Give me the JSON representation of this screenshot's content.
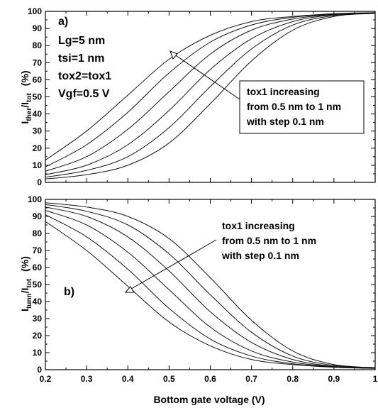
{
  "chart_data": [
    {
      "type": "line",
      "panel_label": "a)",
      "ylabel_main": "I",
      "ylabel_sub1": "ther",
      "ylabel_mid": "/I",
      "ylabel_sub2": "tot",
      "ylabel_unit": "(%)",
      "xlim": [
        0.2,
        1.0
      ],
      "ylim": [
        0,
        100
      ],
      "xticks": [
        "0.2",
        "0.3",
        "0.4",
        "0.5",
        "0.6",
        "0.7",
        "0.8",
        "0.9",
        "1"
      ],
      "yticks": [
        "0",
        "10",
        "20",
        "30",
        "40",
        "50",
        "60",
        "70",
        "80",
        "90",
        "100"
      ],
      "params": [
        "Lg=5 nm",
        "tsi=1 nm",
        "tox2=tox1",
        "Vgf=0.5 V"
      ],
      "annotation": [
        "tox1 increasing",
        "from 0.5 nm to 1 nm",
        "with step 0.1 nm"
      ],
      "x": [
        0.2,
        0.3,
        0.4,
        0.5,
        0.6,
        0.7,
        0.8,
        0.9,
        1.0
      ],
      "series": [
        {
          "values": [
            13,
            30,
            51,
            72,
            86,
            94,
            97,
            98.6,
            99.3
          ]
        },
        {
          "values": [
            9,
            22,
            41,
            64,
            82,
            92,
            96.5,
            98.4,
            99.2
          ]
        },
        {
          "values": [
            6.5,
            15,
            31,
            53,
            75,
            89,
            95.5,
            98.2,
            99.1
          ]
        },
        {
          "values": [
            4.5,
            10,
            22,
            42,
            66,
            84,
            94,
            98,
            99
          ]
        },
        {
          "values": [
            3,
            7,
            15,
            32,
            56,
            78,
            92,
            97.5,
            99
          ]
        },
        {
          "values": [
            2,
            4.5,
            10,
            23,
            46,
            71,
            89,
            97,
            98.8
          ]
        }
      ]
    },
    {
      "type": "line",
      "panel_label": "b)",
      "ylabel_main": "I",
      "ylabel_sub1": "tunn",
      "ylabel_mid": "/I",
      "ylabel_sub2": "tot",
      "ylabel_unit": "(%)",
      "xlabel": "Bottom gate voltage (V)",
      "xlim": [
        0.2,
        1.0
      ],
      "ylim": [
        0,
        100
      ],
      "xticks": [
        "0.2",
        "0.3",
        "0.4",
        "0.5",
        "0.6",
        "0.7",
        "0.8",
        "0.9",
        "1"
      ],
      "yticks": [
        "0",
        "10",
        "20",
        "30",
        "40",
        "50",
        "60",
        "70",
        "80",
        "90",
        "100"
      ],
      "annotation": [
        "tox1 increasing",
        "from 0.5 nm to 1 nm",
        "with step 0.1 nm"
      ],
      "x": [
        0.2,
        0.3,
        0.4,
        0.5,
        0.6,
        0.7,
        0.8,
        0.9,
        1.0
      ],
      "series": [
        {
          "values": [
            87,
            70,
            49,
            28,
            14,
            6,
            3,
            1.4,
            0.7
          ]
        },
        {
          "values": [
            91,
            78,
            59,
            36,
            18,
            8,
            3.5,
            1.6,
            0.8
          ]
        },
        {
          "values": [
            93.5,
            85,
            69,
            47,
            25,
            11,
            4.5,
            1.8,
            0.9
          ]
        },
        {
          "values": [
            95.5,
            90,
            78,
            58,
            34,
            16,
            6,
            2,
            1
          ]
        },
        {
          "values": [
            97,
            93,
            85,
            68,
            44,
            22,
            8,
            2.5,
            1
          ]
        },
        {
          "values": [
            98,
            95.5,
            90,
            77,
            54,
            29,
            11,
            3,
            1.2
          ]
        }
      ]
    }
  ]
}
